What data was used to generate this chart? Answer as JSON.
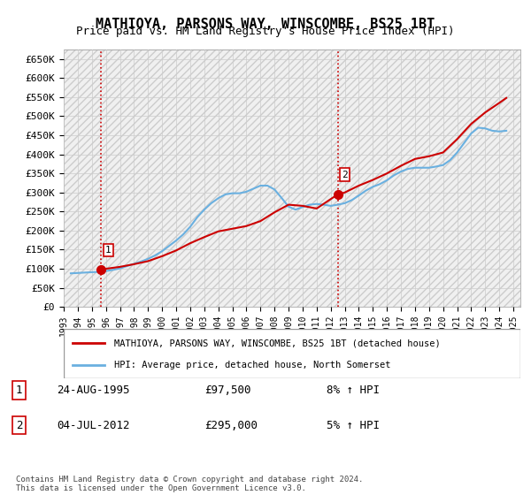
{
  "title": "MATHIOYA, PARSONS WAY, WINSCOMBE, BS25 1BT",
  "subtitle": "Price paid vs. HM Land Registry's House Price Index (HPI)",
  "ylabel_ticks": [
    "£0",
    "£50K",
    "£100K",
    "£150K",
    "£200K",
    "£250K",
    "£300K",
    "£350K",
    "£400K",
    "£450K",
    "£500K",
    "£550K",
    "£600K",
    "£650K"
  ],
  "ytick_values": [
    0,
    50000,
    100000,
    150000,
    200000,
    250000,
    300000,
    350000,
    400000,
    450000,
    500000,
    550000,
    600000,
    650000
  ],
  "ylim": [
    0,
    675000
  ],
  "xlim_start": 1993.0,
  "xlim_end": 2025.5,
  "legend_line1": "MATHIOYA, PARSONS WAY, WINSCOMBE, BS25 1BT (detached house)",
  "legend_line2": "HPI: Average price, detached house, North Somerset",
  "sale1_label": "1",
  "sale1_date": "24-AUG-1995",
  "sale1_price": "£97,500",
  "sale1_hpi": "8% ↑ HPI",
  "sale2_label": "2",
  "sale2_date": "04-JUL-2012",
  "sale2_price": "£295,000",
  "sale2_hpi": "5% ↑ HPI",
  "footnote": "Contains HM Land Registry data © Crown copyright and database right 2024.\nThis data is licensed under the Open Government Licence v3.0.",
  "hpi_color": "#6ab0e0",
  "price_color": "#cc0000",
  "dashed_line_color": "#cc0000",
  "bg_hatch_color": "#e8e8e8",
  "sale1_x": 1995.65,
  "sale1_y": 97500,
  "sale2_x": 2012.5,
  "sale2_y": 295000,
  "hpi_data_x": [
    1993.5,
    1994.0,
    1994.5,
    1995.0,
    1995.5,
    1996.0,
    1996.5,
    1997.0,
    1997.5,
    1998.0,
    1998.5,
    1999.0,
    1999.5,
    2000.0,
    2000.5,
    2001.0,
    2001.5,
    2002.0,
    2002.5,
    2003.0,
    2003.5,
    2004.0,
    2004.5,
    2005.0,
    2005.5,
    2006.0,
    2006.5,
    2007.0,
    2007.5,
    2008.0,
    2008.5,
    2009.0,
    2009.5,
    2010.0,
    2010.5,
    2011.0,
    2011.5,
    2012.0,
    2012.5,
    2013.0,
    2013.5,
    2014.0,
    2014.5,
    2015.0,
    2015.5,
    2016.0,
    2016.5,
    2017.0,
    2017.5,
    2018.0,
    2018.5,
    2019.0,
    2019.5,
    2020.0,
    2020.5,
    2021.0,
    2021.5,
    2022.0,
    2022.5,
    2023.0,
    2023.5,
    2024.0,
    2024.5
  ],
  "hpi_data_y": [
    88000,
    89000,
    90000,
    91000,
    92000,
    94000,
    97000,
    101000,
    107000,
    113000,
    119000,
    126000,
    135000,
    146000,
    160000,
    174000,
    190000,
    210000,
    235000,
    255000,
    272000,
    285000,
    295000,
    298000,
    298000,
    302000,
    310000,
    318000,
    318000,
    308000,
    286000,
    263000,
    255000,
    262000,
    268000,
    270000,
    268000,
    265000,
    268000,
    272000,
    280000,
    292000,
    305000,
    315000,
    322000,
    332000,
    345000,
    355000,
    362000,
    365000,
    365000,
    365000,
    368000,
    372000,
    385000,
    405000,
    430000,
    455000,
    470000,
    468000,
    462000,
    460000,
    462000
  ],
  "price_data_x": [
    1995.65,
    1996.0,
    1997.0,
    1998.0,
    1999.0,
    2000.0,
    2001.0,
    2002.0,
    2003.0,
    2004.0,
    2005.0,
    2006.0,
    2007.0,
    2008.0,
    2009.0,
    2010.0,
    2011.0,
    2012.5,
    2013.0,
    2014.0,
    2015.0,
    2016.0,
    2017.0,
    2018.0,
    2019.0,
    2020.0,
    2021.0,
    2022.0,
    2023.0,
    2024.0,
    2024.5
  ],
  "price_data_y": [
    97500,
    100000,
    105000,
    112000,
    120000,
    133000,
    148000,
    167000,
    183000,
    198000,
    205000,
    212000,
    225000,
    248000,
    268000,
    265000,
    258000,
    295000,
    300000,
    318000,
    333000,
    350000,
    370000,
    388000,
    395000,
    405000,
    440000,
    480000,
    510000,
    535000,
    548000
  ]
}
